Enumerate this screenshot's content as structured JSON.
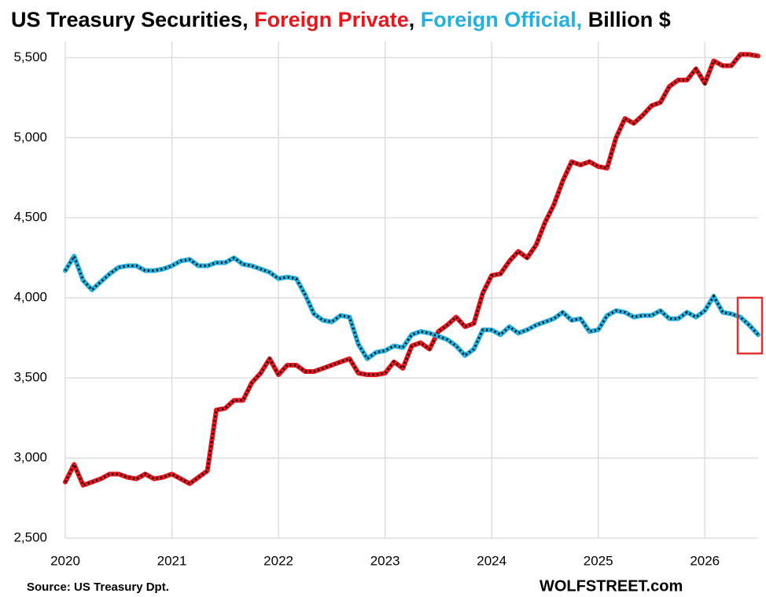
{
  "chart_data": {
    "type": "line",
    "title": [
      "US Treasury Securities, ",
      "Foreign Private",
      ", ",
      "Foreign Official,",
      " Billion $"
    ],
    "source": "Source: US Treasury  Dpt.",
    "brand": "WOLFSTREET.com",
    "xlim": [
      2020,
      2026.5
    ],
    "xticks": [
      2020,
      2021,
      2022,
      2023,
      2024,
      2025,
      2026
    ],
    "ylim": [
      2500,
      5600
    ],
    "yticks": [
      {
        "value": 2500,
        "label": "2,500"
      },
      {
        "value": 3000,
        "label": "3,000"
      },
      {
        "value": 3500,
        "label": "3,500"
      },
      {
        "value": 4000,
        "label": "4,000"
      },
      {
        "value": 4500,
        "label": "4,500"
      },
      {
        "value": 5000,
        "label": "5,000"
      },
      {
        "value": 5500,
        "label": "5,500"
      }
    ],
    "grid": true,
    "x": [
      2020,
      2020.083,
      2020.167,
      2020.25,
      2020.333,
      2020.417,
      2020.5,
      2020.583,
      2020.667,
      2020.75,
      2020.833,
      2020.917,
      2021,
      2021.083,
      2021.167,
      2021.25,
      2021.333,
      2021.417,
      2021.5,
      2021.583,
      2021.667,
      2021.75,
      2021.833,
      2021.917,
      2022,
      2022.083,
      2022.167,
      2022.25,
      2022.333,
      2022.417,
      2022.5,
      2022.583,
      2022.667,
      2022.75,
      2022.833,
      2022.917,
      2023,
      2023.083,
      2023.167,
      2023.25,
      2023.333,
      2023.417,
      2023.5,
      2023.583,
      2023.667,
      2023.75,
      2023.833,
      2023.917,
      2024,
      2024.083,
      2024.167,
      2024.25,
      2024.333,
      2024.417,
      2024.5,
      2024.583,
      2024.667,
      2024.75,
      2024.833,
      2024.917,
      2025,
      2025.083,
      2025.167,
      2025.25,
      2025.333,
      2025.417,
      2025.5,
      2025.583,
      2025.667,
      2025.75,
      2025.833,
      2025.917,
      2026,
      2026.083,
      2026.167,
      2026.25,
      2026.333,
      2026.417,
      2026.5
    ],
    "series": [
      {
        "name": "Foreign Private",
        "color": "#e8161b",
        "values": [
          2850,
          2960,
          2830,
          2850,
          2870,
          2900,
          2900,
          2880,
          2870,
          2900,
          2870,
          2880,
          2900,
          2870,
          2840,
          2880,
          2920,
          3300,
          3310,
          3360,
          3360,
          3470,
          3530,
          3620,
          3520,
          3580,
          3580,
          3540,
          3540,
          3560,
          3580,
          3600,
          3620,
          3530,
          3520,
          3520,
          3530,
          3600,
          3560,
          3700,
          3720,
          3680,
          3790,
          3830,
          3880,
          3820,
          3840,
          4030,
          4140,
          4150,
          4230,
          4290,
          4250,
          4330,
          4470,
          4580,
          4730,
          4850,
          4830,
          4850,
          4820,
          4810,
          5000,
          5120,
          5090,
          5140,
          5200,
          5220,
          5320,
          5360,
          5360,
          5430,
          5340,
          5480,
          5450,
          5450,
          5520,
          5520,
          5510
        ]
      },
      {
        "name": "Foreign Official",
        "color": "#22b0e0",
        "values": [
          4170,
          4260,
          4110,
          4050,
          4100,
          4150,
          4190,
          4200,
          4200,
          4170,
          4170,
          4180,
          4200,
          4230,
          4240,
          4200,
          4200,
          4220,
          4220,
          4250,
          4210,
          4200,
          4180,
          4160,
          4120,
          4130,
          4120,
          4020,
          3900,
          3860,
          3850,
          3890,
          3880,
          3710,
          3620,
          3660,
          3670,
          3700,
          3690,
          3770,
          3790,
          3780,
          3760,
          3740,
          3700,
          3640,
          3680,
          3800,
          3800,
          3770,
          3820,
          3780,
          3800,
          3830,
          3850,
          3870,
          3910,
          3860,
          3870,
          3790,
          3800,
          3890,
          3920,
          3910,
          3880,
          3890,
          3890,
          3920,
          3870,
          3870,
          3910,
          3880,
          3920,
          4010,
          3910,
          3900,
          3880,
          3830,
          3770
        ]
      }
    ]
  }
}
